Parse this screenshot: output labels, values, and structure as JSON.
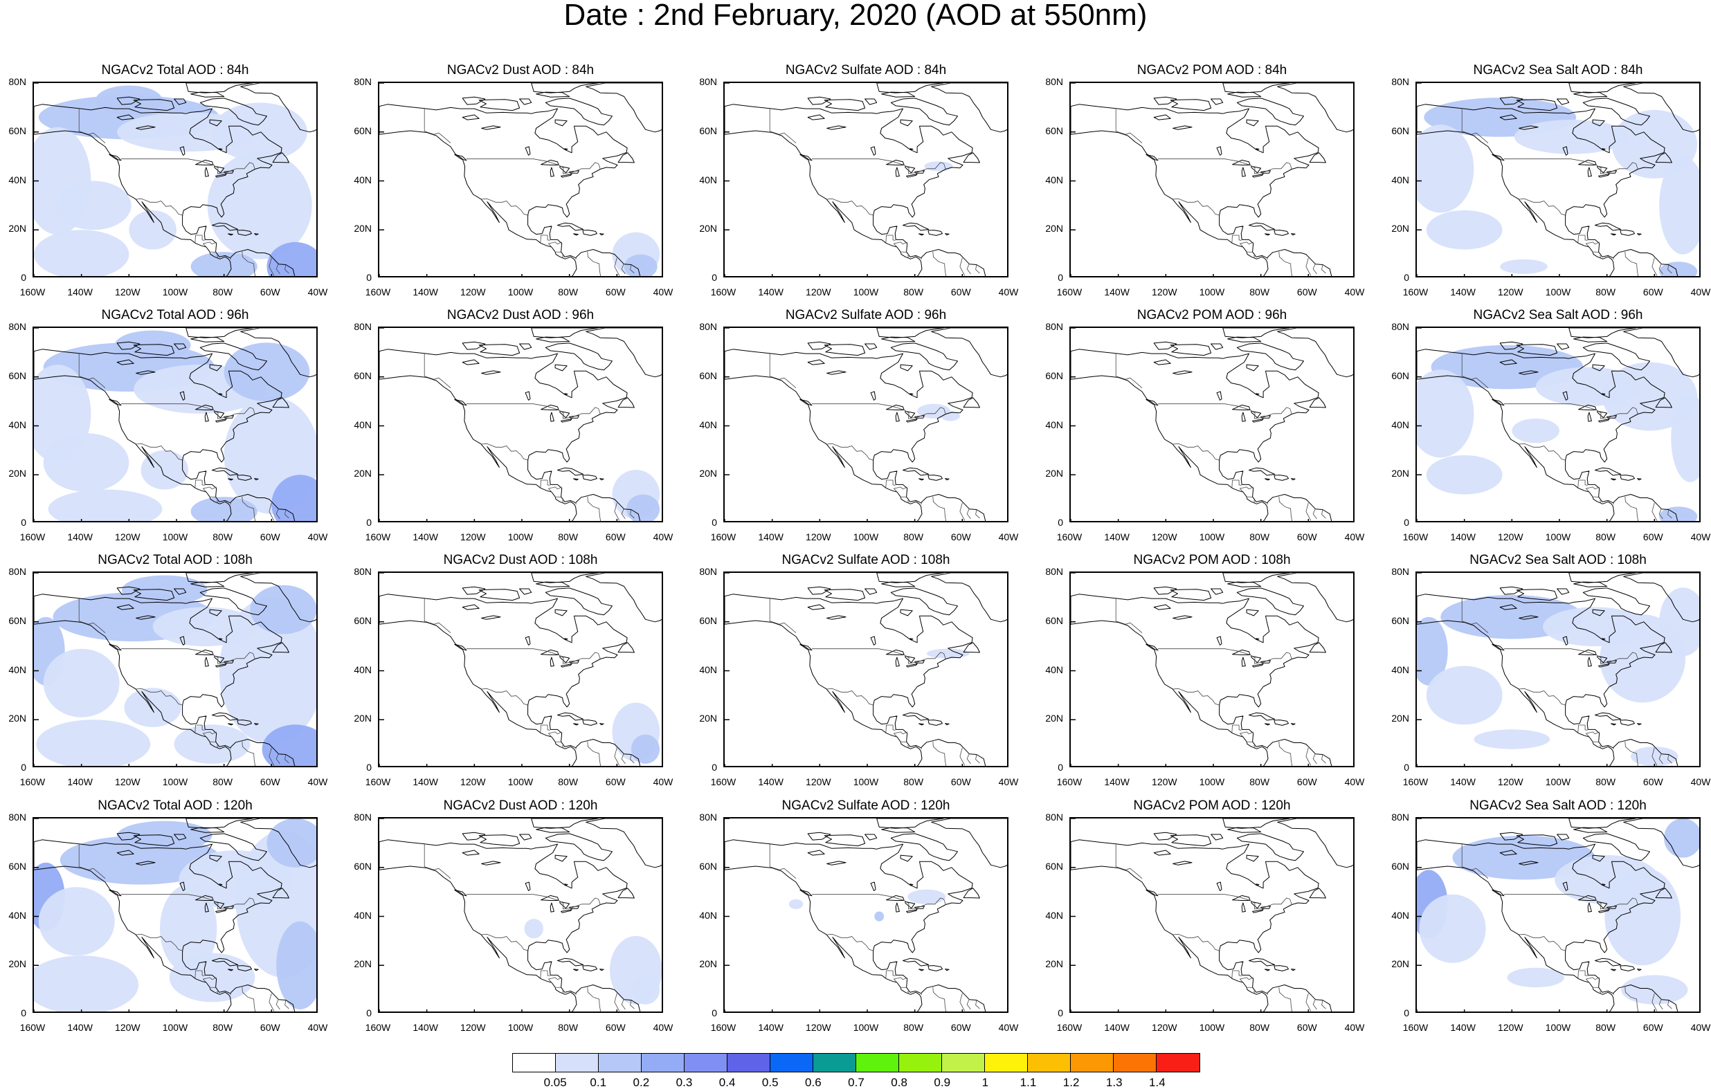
{
  "title": "Date : 2nd February, 2020 (AOD at 550nm)",
  "axes": {
    "lat_ticks": [
      "80N",
      "60N",
      "40N",
      "20N",
      "0"
    ],
    "lon_ticks": [
      "160W",
      "140W",
      "120W",
      "100W",
      "80W",
      "60W",
      "40W"
    ],
    "lon_range": [
      -160,
      -40
    ],
    "lat_range": [
      0,
      80
    ]
  },
  "panels": [
    {
      "title": "NGACv2 Total AOD : 84h",
      "species": "total"
    },
    {
      "title": "NGACv2 Dust AOD : 84h",
      "species": "dust"
    },
    {
      "title": "NGACv2 Sulfate AOD : 84h",
      "species": "sulfate"
    },
    {
      "title": "NGACv2 POM AOD : 84h",
      "species": "pom"
    },
    {
      "title": "NGACv2 Sea Salt AOD : 84h",
      "species": "seasalt"
    },
    {
      "title": "NGACv2 Total AOD : 96h",
      "species": "total"
    },
    {
      "title": "NGACv2 Dust AOD : 96h",
      "species": "dust"
    },
    {
      "title": "NGACv2 Sulfate AOD : 96h",
      "species": "sulfate"
    },
    {
      "title": "NGACv2 POM AOD : 96h",
      "species": "pom"
    },
    {
      "title": "NGACv2 Sea Salt AOD : 96h",
      "species": "seasalt"
    },
    {
      "title": "NGACv2 Total AOD : 108h",
      "species": "total"
    },
    {
      "title": "NGACv2 Dust AOD : 108h",
      "species": "dust"
    },
    {
      "title": "NGACv2 Sulfate AOD : 108h",
      "species": "sulfate"
    },
    {
      "title": "NGACv2 POM AOD : 108h",
      "species": "pom"
    },
    {
      "title": "NGACv2 Sea Salt AOD : 108h",
      "species": "seasalt"
    },
    {
      "title": "NGACv2 Total AOD : 120h",
      "species": "total"
    },
    {
      "title": "NGACv2 Dust AOD : 120h",
      "species": "dust"
    },
    {
      "title": "NGACv2 Sulfate AOD : 120h",
      "species": "sulfate"
    },
    {
      "title": "NGACv2 POM AOD : 120h",
      "species": "pom"
    },
    {
      "title": "NGACv2 Sea Salt  AOD : 120h",
      "species": "seasalt"
    }
  ],
  "colorbar": {
    "labels": [
      "0.05",
      "0.1",
      "0.2",
      "0.3",
      "0.4",
      "0.5",
      "0.6",
      "0.7",
      "0.8",
      "0.9",
      "1",
      "1.1",
      "1.2",
      "1.3",
      "1.4"
    ],
    "colors": [
      "#ffffff",
      "#d6e0fb",
      "#b5c8f7",
      "#93acf5",
      "#7f8ff2",
      "#5e63e8",
      "#0b68f7",
      "#0a9b95",
      "#5ef20c",
      "#96f20c",
      "#c2f24a",
      "#fef20a",
      "#fdbf04",
      "#fc9804",
      "#fc7504",
      "#f91f16"
    ]
  }
}
